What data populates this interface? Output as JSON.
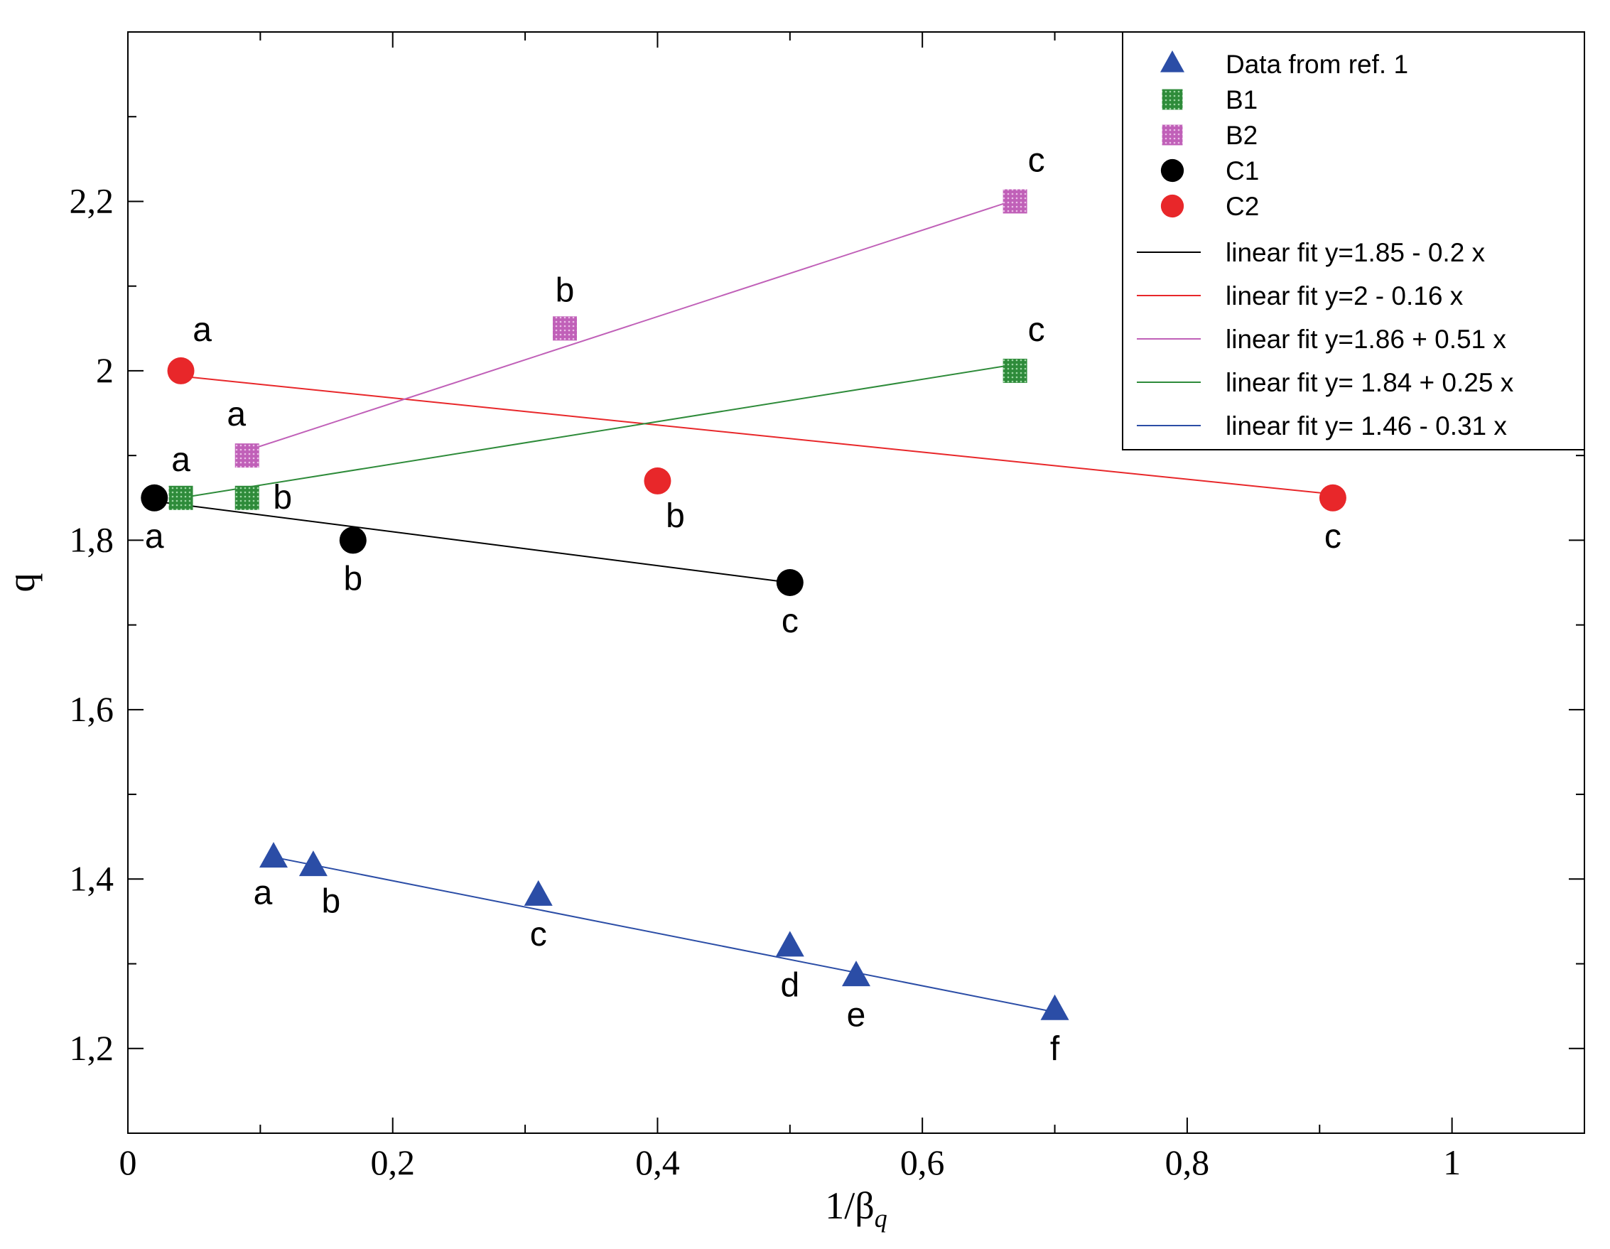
{
  "chart_data": {
    "type": "scatter",
    "title": "",
    "xlabel": "1/β",
    "xlabel_subscript": "q",
    "ylabel": "q",
    "xlim": [
      0,
      1.1
    ],
    "ylim": [
      1.1,
      2.4
    ],
    "grid": false,
    "legend_position": "top-right",
    "x_ticks": [
      {
        "value": 0,
        "label": "0"
      },
      {
        "value": 0.2,
        "label": "0,2"
      },
      {
        "value": 0.4,
        "label": "0,4"
      },
      {
        "value": 0.6,
        "label": "0,6"
      },
      {
        "value": 0.8,
        "label": "0,8"
      },
      {
        "value": 1.0,
        "label": "1"
      }
    ],
    "y_ticks": [
      {
        "value": 1.2,
        "label": "1,2"
      },
      {
        "value": 1.4,
        "label": "1,4"
      },
      {
        "value": 1.6,
        "label": "1,6"
      },
      {
        "value": 1.8,
        "label": "1,8"
      },
      {
        "value": 2.0,
        "label": "2"
      },
      {
        "value": 2.2,
        "label": "2,2"
      }
    ],
    "series": [
      {
        "name": "Data from ref. 1",
        "marker": "triangle",
        "color": "#2b4da6",
        "points": [
          {
            "x": 0.11,
            "y": 1.425,
            "label": "a",
            "pos": "below-left"
          },
          {
            "x": 0.14,
            "y": 1.415,
            "label": "b",
            "pos": "below-right"
          },
          {
            "x": 0.31,
            "y": 1.38,
            "label": "c",
            "pos": "below"
          },
          {
            "x": 0.5,
            "y": 1.32,
            "label": "d",
            "pos": "below"
          },
          {
            "x": 0.55,
            "y": 1.285,
            "label": "e",
            "pos": "below"
          },
          {
            "x": 0.7,
            "y": 1.245,
            "label": "f",
            "pos": "below"
          }
        ]
      },
      {
        "name": "B1",
        "marker": "square",
        "color": "#2e8b3a",
        "points": [
          {
            "x": 0.04,
            "y": 1.85,
            "label": "a",
            "pos": "above"
          },
          {
            "x": 0.09,
            "y": 1.85,
            "label": "b",
            "pos": "right"
          },
          {
            "x": 0.67,
            "y": 2.0,
            "label": "c",
            "pos": "above-right"
          }
        ]
      },
      {
        "name": "B2",
        "marker": "square",
        "color": "#c060b8",
        "points": [
          {
            "x": 0.09,
            "y": 1.9,
            "label": "a",
            "pos": "above-left"
          },
          {
            "x": 0.33,
            "y": 2.05,
            "label": "b",
            "pos": "above"
          },
          {
            "x": 0.67,
            "y": 2.2,
            "label": "c",
            "pos": "above-right"
          }
        ]
      },
      {
        "name": "C1",
        "marker": "circle",
        "color": "#000000",
        "points": [
          {
            "x": 0.02,
            "y": 1.85,
            "label": "a",
            "pos": "below"
          },
          {
            "x": 0.17,
            "y": 1.8,
            "label": "b",
            "pos": "below"
          },
          {
            "x": 0.5,
            "y": 1.75,
            "label": "c",
            "pos": "below"
          }
        ]
      },
      {
        "name": "C2",
        "marker": "circle",
        "color": "#e8272a",
        "points": [
          {
            "x": 0.04,
            "y": 2.0,
            "label": "a",
            "pos": "above-right"
          },
          {
            "x": 0.4,
            "y": 1.87,
            "label": "b",
            "pos": "below-right"
          },
          {
            "x": 0.91,
            "y": 1.85,
            "label": "c",
            "pos": "below"
          }
        ]
      }
    ],
    "fits": [
      {
        "name": "linear fit   y=1.85 - 0.2 x",
        "color": "#000000",
        "intercept": 1.85,
        "slope": -0.2,
        "x_range": [
          0.02,
          0.5
        ]
      },
      {
        "name": "linear fit   y=2 - 0.16 x",
        "color": "#e8272a",
        "intercept": 2.0,
        "slope": -0.16,
        "x_range": [
          0.04,
          0.91
        ]
      },
      {
        "name": "linear fit  y=1.86 + 0.51 x",
        "color": "#c060b8",
        "intercept": 1.86,
        "slope": 0.51,
        "x_range": [
          0.09,
          0.67
        ]
      },
      {
        "name": "linear fit  y= 1.84  + 0.25 x",
        "color": "#2e8b3a",
        "intercept": 1.84,
        "slope": 0.25,
        "x_range": [
          0.04,
          0.67
        ]
      },
      {
        "name": "linear fit  y= 1.46 - 0.31 x",
        "color": "#2b4da6",
        "intercept": 1.46,
        "slope": -0.31,
        "x_range": [
          0.11,
          0.7
        ]
      }
    ]
  }
}
